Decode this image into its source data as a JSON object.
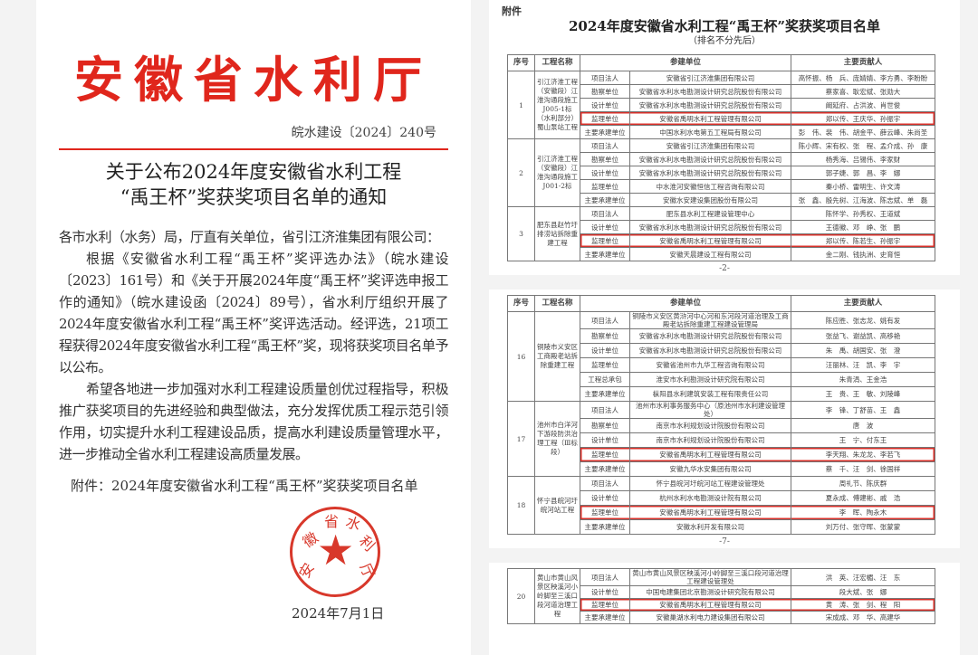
{
  "notice": {
    "header": "安徽省水利厅",
    "doc_number": "皖水建设〔2024〕240号",
    "title_lines": [
      "关于公布2024年度安徽省水利工程",
      "“禹王杯”奖获奖项目名单的通知"
    ],
    "salutation": "各市水利（水务）局，厅直有关单位，省引江济淮集团有限公司：",
    "para1": "根据《安徽省水利工程“禹王杯”奖评选办法》（皖水建设〔2023〕161号）和《关于开展2024年度“禹王杯”奖评选申报工作的通知》（皖水建设函〔2024〕89号），省水利厅组织开展了2024年度安徽省水利工程“禹王杯”奖评选活动。经评选，21项工程获得2024年度安徽省水利工程“禹王杯”奖，现将获奖项目名单予以公布。",
    "para2": "希望各地进一步加强对水利工程建设质量创优过程指导，积极推广获奖项目的先进经验和典型做法，充分发挥优质工程示范引领作用，切实提升水利工程建设品质，提高水利建设质量管理水平，进一步推动全省水利工程建设高质量发展。",
    "attachment": "附件：2024年度安徽省水利工程“禹王杯”奖获奖项目名单",
    "seal_text": "安徽省水利厅",
    "date": "2024年7月1日",
    "accent": "#e0261c"
  },
  "annex": {
    "label": "附件",
    "title": "2024年度安徽省水利工程“禹王杯”奖获奖项目名单",
    "subtitle": "（排名不分先后）",
    "columns": [
      "序号",
      "工程名称",
      "参建单位",
      "主要贡献人"
    ],
    "page_numbers": [
      "-2-",
      "-7-"
    ],
    "pages": [
      {
        "projects": [
          {
            "no": "1",
            "name": "引江济淮工程（安徽段）江淮沟通段施工J005-1标（水利部分）蜀山泵站工程",
            "rows": [
              {
                "role": "项目法人",
                "unit": "安徽省引江济淮集团有限公司",
                "people": "高怀振、杨　兵、庞婧婧、李方勇、李盼盼"
              },
              {
                "role": "勘察单位",
                "unit": "安徽省水利水电勘测设计研究总院股份有限公司",
                "people": "蔡家喜、耿宏斌、张勋大"
              },
              {
                "role": "设计单位",
                "unit": "安徽省水利水电勘测设计研究总院股份有限公司",
                "people": "阚延府、占洪波、肖世俊"
              },
              {
                "role": "监理单位",
                "unit": "安徽省禹明水利工程管理有限公司",
                "people": "郑以传、王庆华、孙振宇",
                "highlight": true
              },
              {
                "role": "主要承建单位",
                "unit": "中国水利水电第五工程局有限公司",
                "people": "彭　伟、裴　伟、胡金平、薛云峰、朱尚圣"
              }
            ]
          },
          {
            "no": "2",
            "name": "引江济淮工程（安徽段）江淮沟通段施工J001-2标",
            "rows": [
              {
                "role": "项目法人",
                "unit": "安徽省引江济淮集团有限公司",
                "people": "陈小辉、宋有权、张　程、孟介成、孙　康"
              },
              {
                "role": "勘察单位",
                "unit": "安徽省水利水电勘测设计研究总院股份有限公司",
                "people": "杨秀海、吕锡伟、李家财"
              },
              {
                "role": "设计单位",
                "unit": "安徽省水利水电勘测设计研究总院股份有限公司",
                "people": "郭子婕、郭　昌、李　娜"
              },
              {
                "role": "监理单位",
                "unit": "中水淮河安徽恒信工程咨询有限公司",
                "people": "秦小桥、雷明生、许文涛"
              },
              {
                "role": "主要承建单位",
                "unit": "安徽水安建设集团股份有限公司",
                "people": "张　鑫、殷先树、江海波、陈志斌、单　磊"
              }
            ]
          },
          {
            "no": "3",
            "name": "肥东县赵竹圩排涝站拆除重建工程",
            "rows": [
              {
                "role": "项目法人",
                "unit": "肥东县水利工程建设管理中心",
                "people": "陈怀学、孙秀权、王道斌"
              },
              {
                "role": "设计单位",
                "unit": "安徽省水利水电勘测设计研究总院股份有限公司",
                "people": "王德徽、邓　峥、张　鹏"
              },
              {
                "role": "监理单位",
                "unit": "安徽省禹明水利工程管理有限公司",
                "people": "郑以传、陈若生、孙振宇",
                "highlight": true
              },
              {
                "role": "主要承建单位",
                "unit": "安徽天晨建设工程有限公司",
                "people": "金二刚、钱执洲、史育恒"
              }
            ]
          }
        ]
      },
      {
        "projects": [
          {
            "no": "16",
            "name": "铜陵市义安区工商殿老站拆除重建工程",
            "rows": [
              {
                "role": "项目法人",
                "unit": "铜陵市义安区黄浒河中心河和东河段河道治理及工商殿老站拆除重建工程建设管理局",
                "people": "陈应胜、张志龙、姚有发"
              },
              {
                "role": "勘察单位",
                "unit": "安徽省水利水电勘测设计研究总院股份有限公司",
                "people": "张益飞、谢益凯、高移艳"
              },
              {
                "role": "设计单位",
                "unit": "安徽省水利水电勘测设计研究总院股份有限公司",
                "people": "朱　禹、胡国安、张　澄"
              },
              {
                "role": "监理单位",
                "unit": "安徽省池州市九华工程咨询有限公司",
                "people": "汪丽林、汪　凯、李　宇"
              },
              {
                "role": "工程总承包",
                "unit": "淮安市水利勘测设计研究院有限公司",
                "people": "朱青涓、王金浩"
              },
              {
                "role": "主要承建单位",
                "unit": "枞阳县水利建筑安装工程有限责任公司",
                "people": "王　贵、王　敏、刘陵峰"
              }
            ]
          },
          {
            "no": "17",
            "name": "池州市白洋河下游段防洪治理工程（Ⅲ标段）",
            "rows": [
              {
                "role": "项目法人",
                "unit": "池州市水利事务服务中心（原池州市水利建设管理处）",
                "people": "李　锋、丁舒苗、王　鑫"
              },
              {
                "role": "勘察单位",
                "unit": "南京市水利规划设计院股份有限公司",
                "people": "唐　波"
              },
              {
                "role": "设计单位",
                "unit": "南京市水利规划设计院股份有限公司",
                "people": "王　宁、付东王"
              },
              {
                "role": "监理单位",
                "unit": "安徽省禹明水利工程管理有限公司",
                "people": "李天翔、朱龙龙、李若飞",
                "highlight": true
              },
              {
                "role": "主要承建单位",
                "unit": "安徽九华水安集团有限公司",
                "people": "蔡　千、汪　剑、徐国祥"
              }
            ]
          },
          {
            "no": "18",
            "name": "怀宁县皖河圩皖河站工程",
            "rows": [
              {
                "role": "项目法人",
                "unit": "怀宁县皖河圩皖河站工程建设管理处",
                "people": "周礼节、陈庆群"
              },
              {
                "role": "设计单位",
                "unit": "杭州水利水电勘测设计院有限公司",
                "people": "夏永成、傅建彬、戚　浩"
              },
              {
                "role": "监理单位",
                "unit": "安徽省禹明水利工程管理有限公司",
                "people": "李　晖、陶永木",
                "highlight": true
              },
              {
                "role": "主要承建单位",
                "unit": "安徽水利开发有限公司",
                "people": "刘万付、张守晖、张蒙蒙"
              }
            ]
          }
        ]
      },
      {
        "projects": [
          {
            "no": "20",
            "name": "黄山市黄山风景区秧溪河小岭脚至三溪口段河道治理工程",
            "rows": [
              {
                "role": "项目法人",
                "unit": "黄山市黄山风景区秧溪河小岭脚至三溪口段河道治理工程建设管理处",
                "people": "洪　英、汪宏楣、汪　东"
              },
              {
                "role": "设计单位",
                "unit": "中国电建集团北京勘测设计研究院有限公司",
                "people": "段大斌、张　娜"
              },
              {
                "role": "监理单位",
                "unit": "安徽省禹明水利工程管理有限公司",
                "people": "黄　涛、张　剑、程　阳",
                "highlight": true
              },
              {
                "role": "主要承建单位",
                "unit": "安徽巢湖水利电力建设集团有限公司",
                "people": "宋成成、邓　华、高建华"
              }
            ]
          }
        ]
      }
    ]
  }
}
